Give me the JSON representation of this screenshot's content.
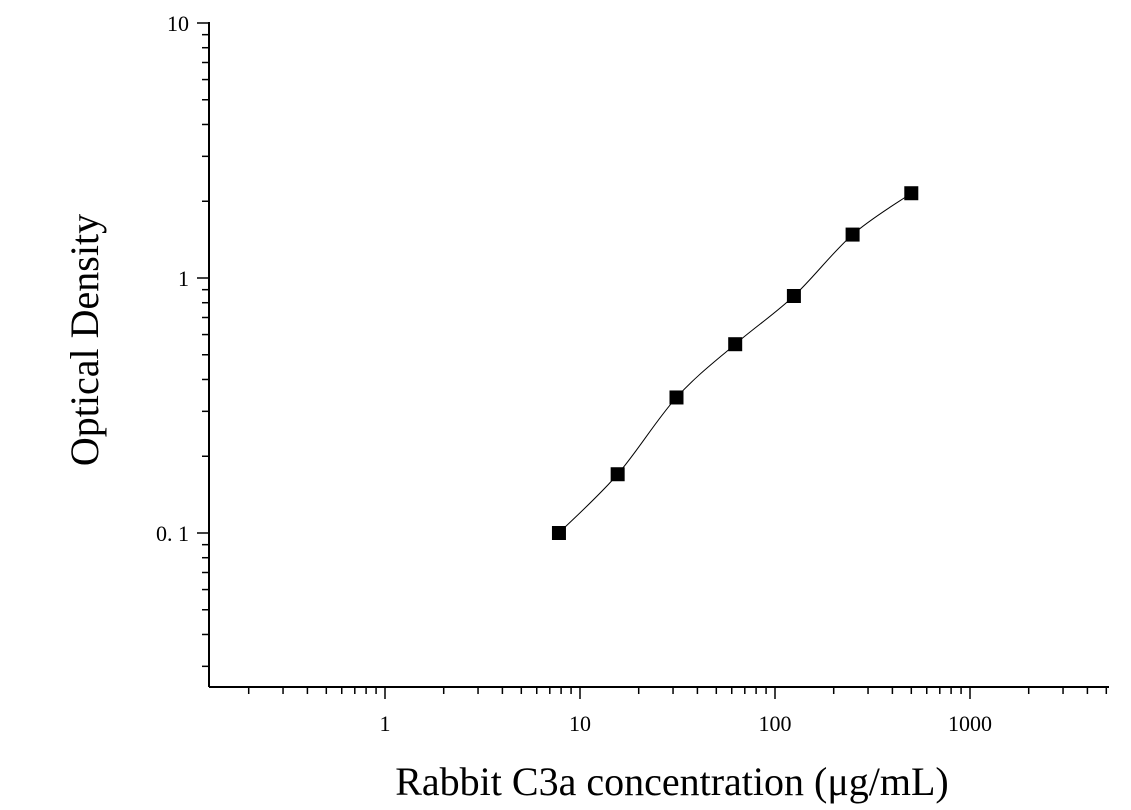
{
  "chart_data": {
    "type": "scatter",
    "xlabel": "Rabbit C3a concentration (μg/mL)",
    "ylabel": "Optical Density",
    "x_scale": "log",
    "y_scale": "log",
    "xlim": [
      0.1,
      5000
    ],
    "ylim": [
      0.03,
      10
    ],
    "x_tick_labels": [
      "1",
      "10",
      "100",
      "1000"
    ],
    "y_tick_labels": [
      "0. 1",
      "1",
      "10"
    ],
    "grid": false,
    "series": [
      {
        "x": [
          7.8,
          15.6,
          31.25,
          62.5,
          125,
          250,
          500
        ],
        "y": [
          0.1,
          0.17,
          0.34,
          0.55,
          0.85,
          1.48,
          2.15
        ],
        "marker": "square",
        "color": "#000000",
        "fit_line": true
      }
    ]
  }
}
